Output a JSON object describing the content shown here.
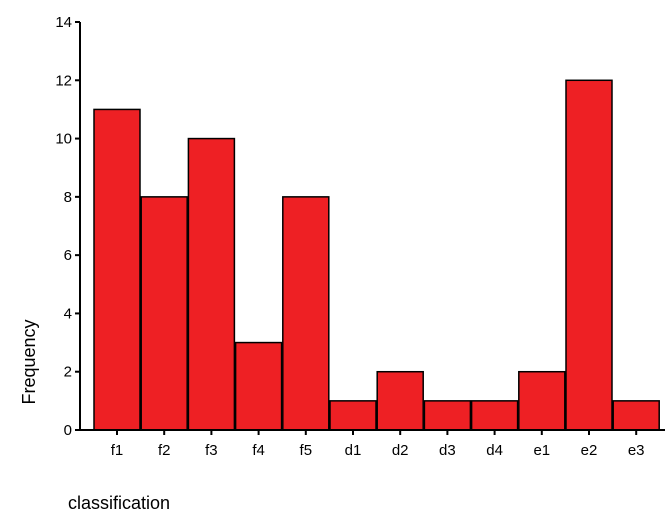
{
  "chart_data": {
    "type": "bar",
    "categories": [
      "f1",
      "f2",
      "f3",
      "f4",
      "f5",
      "d1",
      "d2",
      "d3",
      "d4",
      "e1",
      "e2",
      "e3"
    ],
    "values": [
      11,
      8,
      10,
      3,
      8,
      1,
      2,
      1,
      1,
      2,
      12,
      1
    ],
    "xlabel": "classification",
    "ylabel": "Frequency",
    "ylim": [
      0,
      14
    ],
    "yticks": [
      0,
      2,
      4,
      6,
      8,
      10,
      12,
      14
    ],
    "bar_color": "#ee2024",
    "edge_color": "#000000",
    "grid": false,
    "legend": "none"
  }
}
